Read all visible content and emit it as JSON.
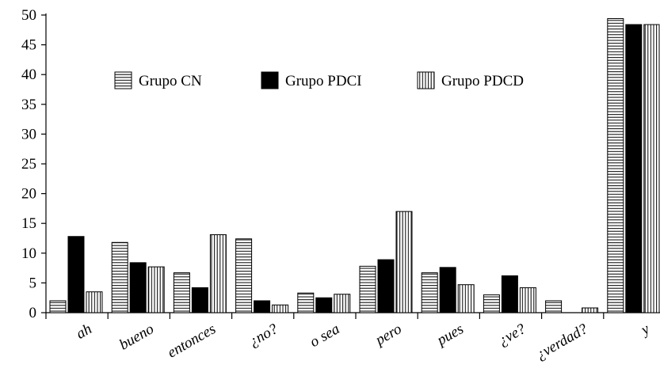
{
  "chart_data": {
    "type": "bar",
    "title": "",
    "xlabel": "",
    "ylabel": "",
    "ylim": [
      0,
      50
    ],
    "yticks": [
      0,
      5,
      10,
      15,
      20,
      25,
      30,
      35,
      40,
      45,
      50
    ],
    "grid": false,
    "legend_position": "top-center",
    "categories": [
      "ah",
      "bueno",
      "entonces",
      "¿no?",
      "o sea",
      "pero",
      "pues",
      "¿ve?",
      "¿verdad?",
      "y"
    ],
    "series": [
      {
        "name": "Grupo CN",
        "pattern": "horizontal-stripes",
        "values": [
          2.0,
          11.8,
          6.7,
          12.4,
          3.3,
          7.8,
          6.7,
          3.0,
          2.0,
          49.4
        ]
      },
      {
        "name": "Grupo PDCI",
        "pattern": "solid-black",
        "values": [
          12.8,
          8.4,
          4.2,
          2.0,
          2.5,
          8.9,
          7.6,
          6.2,
          0.0,
          48.4
        ]
      },
      {
        "name": "Grupo PDCD",
        "pattern": "vertical-stripes",
        "values": [
          3.5,
          7.7,
          13.1,
          1.3,
          3.1,
          17.0,
          4.7,
          4.2,
          0.8,
          48.4
        ]
      }
    ]
  }
}
